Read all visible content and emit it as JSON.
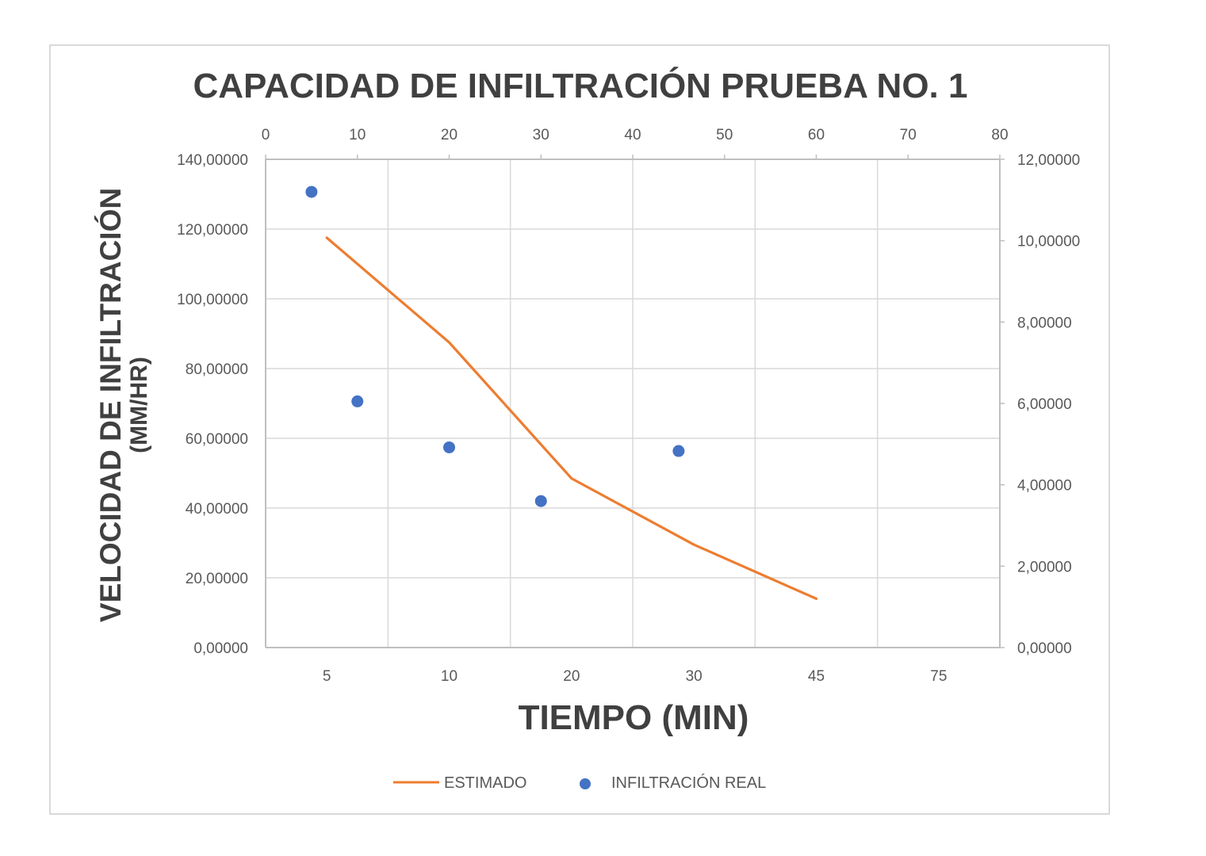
{
  "chart_data": {
    "type": "scatter",
    "title": "CAPACIDAD DE INFILTRACIÓN PRUEBA NO. 1",
    "xlabel": "TIEMPO (MIN)",
    "ylabel_line1": "VELOCIDAD DE INFILTRACIÓN",
    "ylabel_line2": "(MM/HR)",
    "colors": {
      "estimado": "#ed7d31",
      "real": "#4472c4",
      "grid": "#d9d9d9",
      "axis": "#bfbfbf"
    },
    "secondary_x": {
      "range": [
        0,
        80
      ],
      "ticks": [
        "0",
        "10",
        "20",
        "30",
        "40",
        "50",
        "60",
        "70",
        "80"
      ]
    },
    "primary_y": {
      "range": [
        0,
        140
      ],
      "ticks": [
        "0,00000",
        "20,00000",
        "40,00000",
        "60,00000",
        "80,00000",
        "100,00000",
        "120,00000",
        "140,00000"
      ]
    },
    "secondary_y": {
      "range": [
        0,
        12
      ],
      "ticks": [
        "0,00000",
        "2,00000",
        "4,00000",
        "6,00000",
        "8,00000",
        "10,00000",
        "12,00000"
      ]
    },
    "primary_x": {
      "categories": [
        "5",
        "10",
        "20",
        "30",
        "45",
        "75"
      ]
    },
    "series": [
      {
        "name": "ESTIMADO",
        "kind": "line",
        "axis": "primary",
        "x": [
          "5",
          "10",
          "20",
          "30",
          "45"
        ],
        "y": [
          117.5,
          87.5,
          48.5,
          29.5,
          14.0
        ]
      },
      {
        "name": "INFILTRACIÓN REAL",
        "kind": "scatter",
        "axis": "secondary",
        "x": [
          5,
          10,
          20,
          30,
          45
        ],
        "y": [
          11.2,
          6.05,
          4.92,
          3.6,
          4.83
        ]
      }
    ],
    "grid": true,
    "legend_position": "bottom"
  }
}
